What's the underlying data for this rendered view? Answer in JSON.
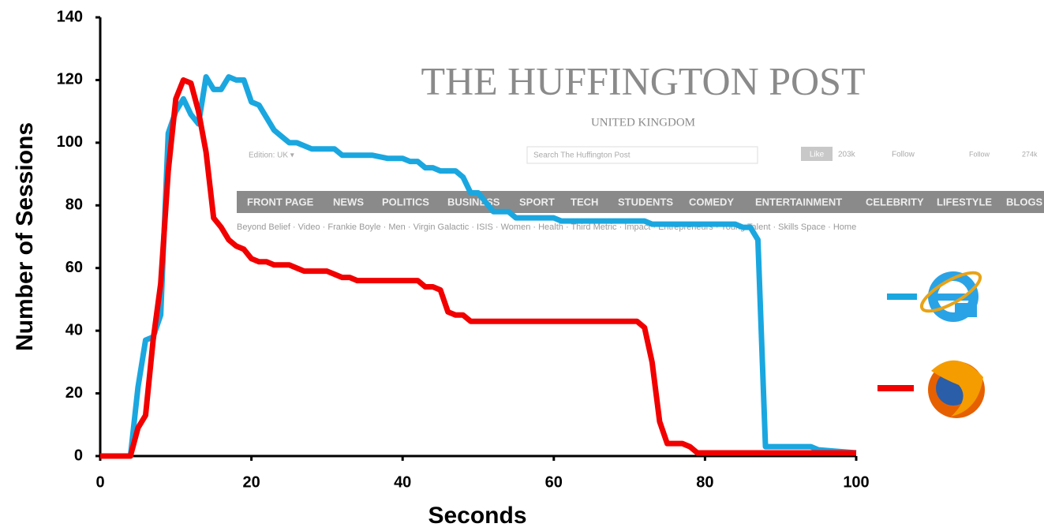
{
  "chart_data": {
    "type": "line",
    "x_label": "Seconds",
    "y_label": "Number of Sessions",
    "xlim": [
      0,
      100
    ],
    "ylim": [
      0,
      140
    ],
    "xticks": [
      0,
      20,
      40,
      60,
      80,
      100
    ],
    "yticks": [
      0,
      20,
      40,
      60,
      80,
      100,
      120,
      140
    ],
    "series": [
      {
        "color": "#1aa7e0",
        "x": [
          0,
          4,
          5,
          6,
          7,
          8,
          9,
          10,
          11,
          12,
          13,
          14,
          15,
          16,
          17,
          18,
          19,
          20,
          21,
          22,
          23,
          24,
          25,
          26,
          27,
          28,
          30,
          31,
          32,
          34,
          36,
          38,
          40,
          41,
          42,
          43,
          44,
          45,
          47,
          48,
          49,
          50,
          51,
          52,
          54,
          55,
          60,
          61,
          72,
          73,
          84,
          85,
          86,
          87,
          88,
          94,
          95,
          100
        ],
        "values": [
          0,
          0,
          22,
          37,
          38,
          45,
          103,
          110,
          114,
          109,
          106,
          121,
          117,
          117,
          121,
          120,
          120,
          113,
          112,
          108,
          104,
          102,
          100,
          100,
          99,
          98,
          98,
          98,
          96,
          96,
          96,
          95,
          95,
          94,
          94,
          92,
          92,
          91,
          91,
          89,
          84,
          84,
          81,
          78,
          78,
          76,
          76,
          75,
          75,
          74,
          74,
          73,
          73,
          69,
          3,
          3,
          2,
          1
        ]
      },
      {
        "color": "#f20000",
        "x": [
          0,
          4,
          5,
          6,
          7,
          8,
          9,
          10,
          11,
          12,
          13,
          14,
          15,
          16,
          17,
          18,
          19,
          20,
          21,
          22,
          23,
          25,
          26,
          27,
          30,
          31,
          32,
          33,
          34,
          42,
          43,
          44,
          45,
          46,
          47,
          48,
          49,
          71,
          72,
          73,
          74,
          75,
          77,
          78,
          79,
          100
        ],
        "values": [
          0,
          0,
          9,
          13,
          37,
          55,
          91,
          114,
          120,
          119,
          110,
          97,
          76,
          73,
          69,
          67,
          66,
          63,
          62,
          62,
          61,
          61,
          60,
          59,
          59,
          58,
          57,
          57,
          56,
          56,
          54,
          54,
          53,
          46,
          45,
          45,
          43,
          43,
          41,
          30,
          11,
          4,
          4,
          3,
          1,
          1
        ]
      }
    ]
  },
  "backdrop": {
    "title": "THE HUFFINGTON POST",
    "subtitle": "UNITED KINGDOM",
    "edition": "Edition: UK ▾",
    "search": "Search The Huffington Post",
    "like": "Like",
    "like_count": "203k",
    "twitter": "Follow",
    "gplus": "Follow",
    "gplus_count": "274k",
    "nav": [
      "FRONT PAGE",
      "NEWS",
      "POLITICS",
      "BUSINESS",
      "SPORT",
      "TECH",
      "STUDENTS",
      "COMEDY",
      "ENTERTAINMENT",
      "CELEBRITY",
      "LIFESTYLE",
      "BLOGS"
    ],
    "links": "Beyond Belief · Video · Frankie Boyle · Men · Virgin Galactic · ISIS · Women · Health · Third Metric · Impact · Entrepreneurs · Young Talent · Skills Space · Home"
  }
}
